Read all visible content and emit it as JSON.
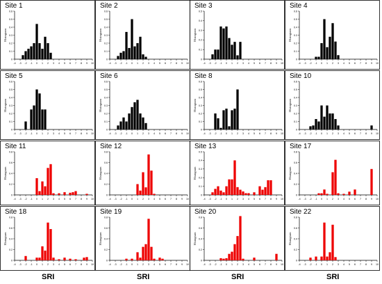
{
  "chart_data": {
    "type": "bar",
    "xlabel": "SRI",
    "ylabel": "Histogram",
    "xlim": [
      -4,
      10
    ],
    "x_ticks": [
      "-4",
      "-3",
      "-2",
      "-1",
      "0",
      "1",
      "2",
      "3",
      "4",
      "5",
      "6",
      "7",
      "8",
      "9",
      "10"
    ],
    "colors": {
      "black_series": "#000000",
      "red_series": "#ee0000"
    },
    "panels": [
      {
        "title": "Site 1",
        "color": "#000000",
        "ylim": [
          0,
          0.6
        ],
        "y_ticks": [
          "0",
          "0.1",
          "0.2",
          "0.3",
          "0.4",
          "0.5",
          "0.6"
        ],
        "bars": [
          [
            -2.5,
            0.05
          ],
          [
            -2,
            0.1
          ],
          [
            -1.5,
            0.13
          ],
          [
            -1,
            0.16
          ],
          [
            -0.5,
            0.2
          ],
          [
            0,
            0.44
          ],
          [
            0.5,
            0.2
          ],
          [
            1,
            0.13
          ],
          [
            1.5,
            0.28
          ],
          [
            2,
            0.2
          ],
          [
            2.5,
            0.08
          ]
        ]
      },
      {
        "title": "Site 2",
        "color": "#000000",
        "ylim": [
          0,
          0.6
        ],
        "y_ticks": [
          "0",
          "0.1",
          "0.2",
          "0.3",
          "0.4",
          "0.5",
          "0.6"
        ],
        "bars": [
          [
            -2.5,
            0.04
          ],
          [
            -2,
            0.08
          ],
          [
            -1.5,
            0.1
          ],
          [
            -1,
            0.34
          ],
          [
            -0.5,
            0.14
          ],
          [
            0,
            0.5
          ],
          [
            0.5,
            0.16
          ],
          [
            1,
            0.2
          ],
          [
            1.5,
            0.28
          ],
          [
            2,
            0.06
          ],
          [
            2.5,
            0.03
          ]
        ]
      },
      {
        "title": "Site 3",
        "color": "#000000",
        "ylim": [
          0,
          0.5
        ],
        "y_ticks": [
          "0",
          "0.1",
          "0.2",
          "0.3",
          "0.4",
          "0.5"
        ],
        "bars": [
          [
            -2.5,
            0.05
          ],
          [
            -2,
            0.1
          ],
          [
            -1.5,
            0.1
          ],
          [
            -1,
            0.34
          ],
          [
            -0.5,
            0.32
          ],
          [
            0,
            0.34
          ],
          [
            0.5,
            0.22
          ],
          [
            1,
            0.15
          ],
          [
            1.5,
            0.18
          ],
          [
            2,
            0.04
          ],
          [
            2.5,
            0.18
          ]
        ]
      },
      {
        "title": "Site 4",
        "color": "#000000",
        "ylim": [
          0,
          0.6
        ],
        "y_ticks": [
          "0",
          "0.1",
          "0.2",
          "0.3",
          "0.4",
          "0.5",
          "0.6"
        ],
        "bars": [
          [
            -1,
            0.03
          ],
          [
            -0.5,
            0.03
          ],
          [
            0,
            0.2
          ],
          [
            0.5,
            0.5
          ],
          [
            1,
            0.15
          ],
          [
            1.5,
            0.28
          ],
          [
            2,
            0.45
          ],
          [
            2.5,
            0.22
          ],
          [
            3,
            0.05
          ]
        ]
      },
      {
        "title": "Site 5",
        "color": "#000000",
        "ylim": [
          0,
          0.6
        ],
        "y_ticks": [
          "0",
          "0.1",
          "0.2",
          "0.3",
          "0.4",
          "0.5",
          "0.6"
        ],
        "bars": [
          [
            -2,
            0.1
          ],
          [
            -1,
            0.25
          ],
          [
            -0.5,
            0.3
          ],
          [
            0,
            0.5
          ],
          [
            0.5,
            0.45
          ],
          [
            1,
            0.25
          ],
          [
            1.5,
            0.25
          ]
        ]
      },
      {
        "title": "Site 6",
        "color": "#000000",
        "ylim": [
          0,
          0.6
        ],
        "y_ticks": [
          "0",
          "0.1",
          "0.2",
          "0.3",
          "0.4",
          "0.5",
          "0.6"
        ],
        "bars": [
          [
            -2.5,
            0.05
          ],
          [
            -2,
            0.1
          ],
          [
            -1.5,
            0.15
          ],
          [
            -1,
            0.1
          ],
          [
            -0.5,
            0.2
          ],
          [
            0,
            0.28
          ],
          [
            0.5,
            0.34
          ],
          [
            1,
            0.37
          ],
          [
            1.5,
            0.2
          ],
          [
            2,
            0.15
          ],
          [
            2.5,
            0.08
          ]
        ]
      },
      {
        "title": "Site 8",
        "color": "#000000",
        "ylim": [
          0,
          0.6
        ],
        "y_ticks": [
          "0",
          "0.1",
          "0.2",
          "0.3",
          "0.4",
          "0.5",
          "0.6"
        ],
        "bars": [
          [
            -2,
            0.2
          ],
          [
            -1.5,
            0.14
          ],
          [
            -1,
            0.02
          ],
          [
            -0.5,
            0.24
          ],
          [
            0,
            0.26
          ],
          [
            0.5,
            0.04
          ],
          [
            1,
            0.24
          ],
          [
            1.5,
            0.26
          ],
          [
            2,
            0.5
          ]
        ]
      },
      {
        "title": "Site 10",
        "color": "#000000",
        "ylim": [
          0,
          0.6
        ],
        "y_ticks": [
          "0",
          "0.1",
          "0.2",
          "0.3",
          "0.4",
          "0.5",
          "0.6"
        ],
        "bars": [
          [
            -2,
            0.04
          ],
          [
            -1.5,
            0.05
          ],
          [
            -1,
            0.13
          ],
          [
            -0.5,
            0.1
          ],
          [
            0,
            0.3
          ],
          [
            0.5,
            0.16
          ],
          [
            1,
            0.3
          ],
          [
            1.5,
            0.2
          ],
          [
            2,
            0.2
          ],
          [
            2.5,
            0.13
          ],
          [
            3,
            0.05
          ],
          [
            9,
            0.05
          ]
        ]
      },
      {
        "title": "Site 11",
        "color": "#ee0000",
        "ylim": [
          0,
          0.8
        ],
        "y_ticks": [
          "0",
          "0.2",
          "0.4",
          "0.6",
          "0.8"
        ],
        "bars": [
          [
            0,
            0.31
          ],
          [
            0.5,
            0.07
          ],
          [
            1,
            0.25
          ],
          [
            1.5,
            0.16
          ],
          [
            2,
            0.5
          ],
          [
            2.5,
            0.57
          ],
          [
            3,
            0.03
          ],
          [
            4,
            0.03
          ],
          [
            5,
            0.05
          ],
          [
            6,
            0.04
          ],
          [
            6.5,
            0.05
          ],
          [
            7,
            0.07
          ],
          [
            9,
            0.02
          ]
        ]
      },
      {
        "title": "Site 12",
        "color": "#ee0000",
        "ylim": [
          0,
          0.8
        ],
        "y_ticks": [
          "0",
          "0.2",
          "0.4",
          "0.6",
          "0.8"
        ],
        "bars": [
          [
            1,
            0.2
          ],
          [
            1.5,
            0.08
          ],
          [
            2,
            0.42
          ],
          [
            2.5,
            0.14
          ],
          [
            3,
            0.75
          ],
          [
            3.5,
            0.45
          ],
          [
            4,
            0.02
          ]
        ]
      },
      {
        "title": "Site 13",
        "color": "#ee0000",
        "ylim": [
          0,
          0.5
        ],
        "y_ticks": [
          "0",
          "0.1",
          "0.2",
          "0.3",
          "0.4",
          "0.5"
        ],
        "bars": [
          [
            -2.5,
            0.03
          ],
          [
            -2,
            0.07
          ],
          [
            -1.5,
            0.1
          ],
          [
            -1,
            0.05
          ],
          [
            -0.5,
            0.03
          ],
          [
            0,
            0.1
          ],
          [
            0.5,
            0.18
          ],
          [
            1,
            0.18
          ],
          [
            1.5,
            0.4
          ],
          [
            2,
            0.09
          ],
          [
            2.5,
            0.06
          ],
          [
            3,
            0.04
          ],
          [
            3.5,
            0.02
          ],
          [
            4,
            0.02
          ],
          [
            5,
            0.03
          ],
          [
            6,
            0.1
          ],
          [
            6.5,
            0.06
          ],
          [
            7,
            0.09
          ],
          [
            7.5,
            0.17
          ],
          [
            8,
            0.17
          ]
        ]
      },
      {
        "title": "Site 17",
        "color": "#ee0000",
        "ylim": [
          0,
          0.8
        ],
        "y_ticks": [
          "0",
          "0.2",
          "0.4",
          "0.6",
          "0.8"
        ],
        "bars": [
          [
            -0.5,
            0.03
          ],
          [
            0,
            0.03
          ],
          [
            0.5,
            0.1
          ],
          [
            1,
            0.02
          ],
          [
            2,
            0.42
          ],
          [
            2.5,
            0.65
          ],
          [
            3,
            0.03
          ],
          [
            4,
            0.02
          ],
          [
            5,
            0.06
          ],
          [
            6,
            0.1
          ],
          [
            9,
            0.48
          ]
        ]
      },
      {
        "title": "Site 18",
        "color": "#ee0000",
        "ylim": [
          0,
          0.8
        ],
        "y_ticks": [
          "0",
          "0.2",
          "0.4",
          "0.6",
          "0.8"
        ],
        "bars": [
          [
            -2,
            0.08
          ],
          [
            0,
            0.05
          ],
          [
            0.5,
            0.05
          ],
          [
            1,
            0.26
          ],
          [
            1.5,
            0.18
          ],
          [
            2,
            0.7
          ],
          [
            2.5,
            0.58
          ],
          [
            3,
            0.05
          ],
          [
            4,
            0.02
          ],
          [
            5,
            0.05
          ],
          [
            6,
            0.03
          ],
          [
            7,
            0.02
          ],
          [
            8.5,
            0.05
          ],
          [
            9,
            0.06
          ]
        ]
      },
      {
        "title": "Site 19",
        "color": "#ee0000",
        "ylim": [
          0,
          0.8
        ],
        "y_ticks": [
          "0",
          "0.2",
          "0.4",
          "0.6",
          "0.8"
        ],
        "bars": [
          [
            -1,
            0.03
          ],
          [
            0,
            0.03
          ],
          [
            1,
            0.15
          ],
          [
            1.5,
            0.05
          ],
          [
            2,
            0.25
          ],
          [
            2.5,
            0.3
          ],
          [
            3,
            0.77
          ],
          [
            3.5,
            0.25
          ],
          [
            4,
            0.03
          ],
          [
            5,
            0.05
          ],
          [
            5.5,
            0.03
          ]
        ]
      },
      {
        "title": "Site 20",
        "color": "#ee0000",
        "ylim": [
          0,
          0.8
        ],
        "y_ticks": [
          "0",
          "0.2",
          "0.4",
          "0.6",
          "0.8"
        ],
        "bars": [
          [
            -1,
            0.04
          ],
          [
            -0.5,
            0.03
          ],
          [
            0,
            0.04
          ],
          [
            0.5,
            0.12
          ],
          [
            1,
            0.16
          ],
          [
            1.5,
            0.3
          ],
          [
            2,
            0.45
          ],
          [
            2.5,
            0.82
          ],
          [
            3,
            0.03
          ],
          [
            5,
            0.05
          ],
          [
            9,
            0.12
          ]
        ]
      },
      {
        "title": "Site 22",
        "color": "#ee0000",
        "ylim": [
          0,
          0.8
        ],
        "y_ticks": [
          "0",
          "0.2",
          "0.4",
          "0.6",
          "0.8"
        ],
        "bars": [
          [
            -2,
            0.05
          ],
          [
            -1,
            0.07
          ],
          [
            0,
            0.07
          ],
          [
            0.5,
            0.7
          ],
          [
            1,
            0.07
          ],
          [
            1.5,
            0.15
          ],
          [
            2,
            0.66
          ],
          [
            2.5,
            0.06
          ]
        ]
      }
    ]
  }
}
